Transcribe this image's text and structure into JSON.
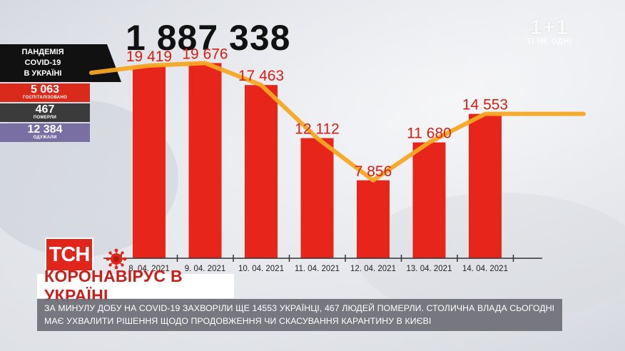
{
  "total": "1 887 338",
  "logo": {
    "main": "1+1",
    "sub": "ТІ НЕ ОДНІ"
  },
  "stats": {
    "heading": [
      "ПАНДЕМІЯ",
      "COVID-19",
      "В УКРАЇНІ"
    ],
    "rows": [
      {
        "value": "5 063",
        "label": "ГОСПІТАЛІЗОВАНО",
        "color": "#d92a1c"
      },
      {
        "value": "467",
        "label": "ПОМЕРЛИ",
        "color": "#3b3b3b"
      },
      {
        "value": "12 384",
        "label": "ОДУЖАЛИ",
        "color": "#7a6fa3"
      }
    ]
  },
  "chart_data": {
    "type": "bar",
    "categories": [
      "8. 04. 2021",
      "9. 04. 2021",
      "10. 04. 2021",
      "11. 04. 2021",
      "12. 04. 2021",
      "13. 04. 2021",
      "14. 04. 2021"
    ],
    "values": [
      19419,
      19676,
      17463,
      12112,
      7856,
      11680,
      14553
    ],
    "value_labels": [
      "19 419",
      "19 676",
      "17 463",
      "12 112",
      "7 856",
      "11 680",
      "14 553"
    ],
    "bar_color": "#e8251b",
    "line_color": "#f5a623",
    "ylim": [
      0,
      21000
    ],
    "grid": false
  },
  "brand": {
    "channel": "ТСН"
  },
  "headline": "КОРОНАВІРУС В УКРАЇНІ",
  "ticker": "ЗА МИНУЛУ ДОБУ НА COVID-19 ЗАХВОРІЛИ ЩЕ 14553 УКРАЇНЦІ, 467 ЛЮДЕЙ ПОМЕРЛИ. СТОЛИЧНА ВЛАДА СЬОГОДНІ МАЄ УХВАЛИТИ РІШЕННЯ ЩОДО ПРОДОВЖЕННЯ ЧИ СКАСУВАННЯ КАРАНТИНУ В КИЄВІ",
  "icons": {
    "virus": "virus-icon"
  }
}
